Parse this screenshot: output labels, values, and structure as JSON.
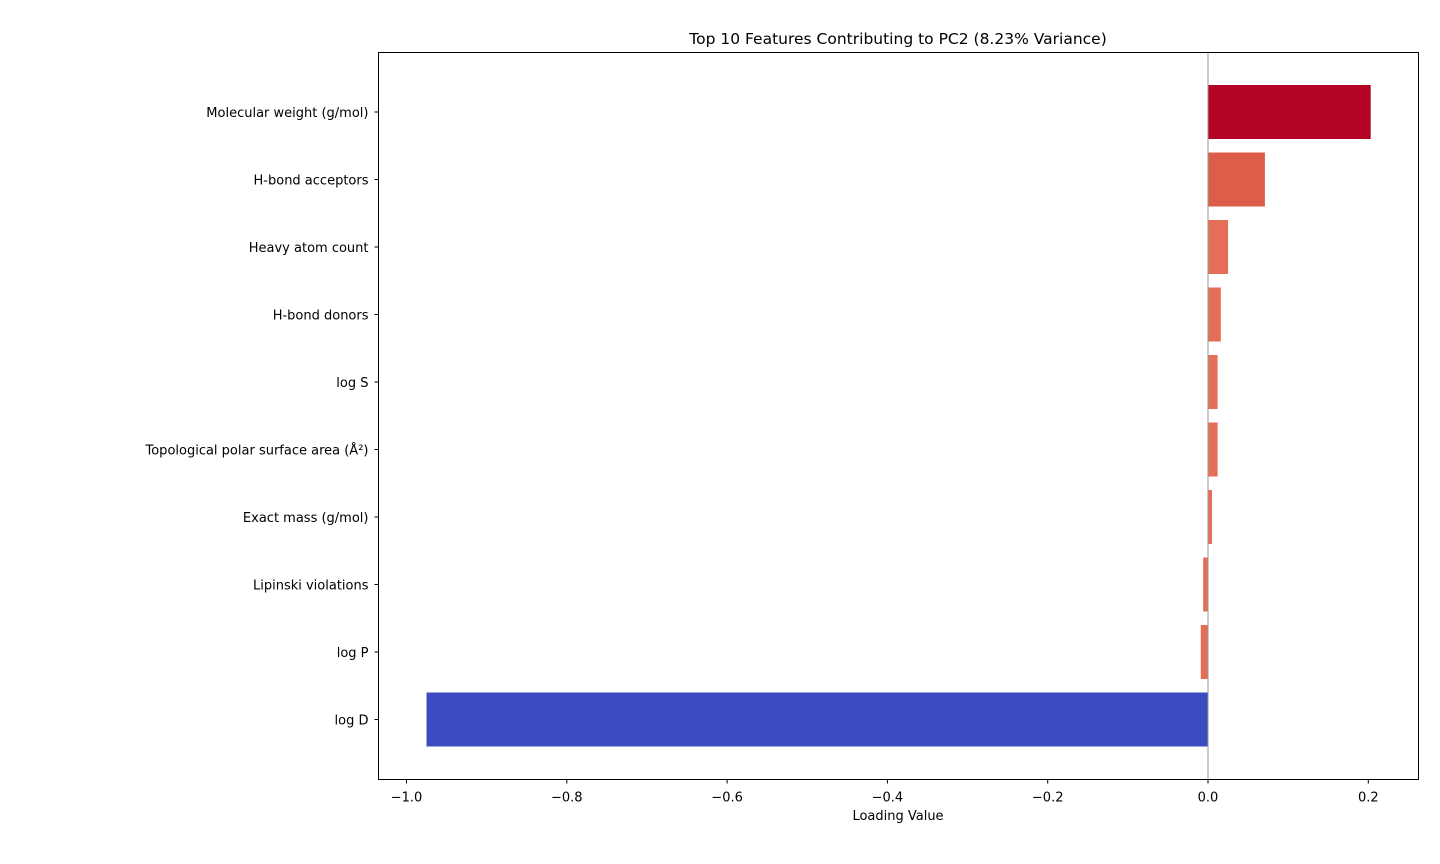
{
  "chart_data": {
    "type": "bar",
    "orientation": "horizontal",
    "title": "Top 10 Features Contributing to PC2 (8.23% Variance)",
    "xlabel": "Loading Value",
    "ylabel": "",
    "xlim": [
      -1.0,
      0.26
    ],
    "xticks": [
      -1.0,
      -0.8,
      -0.6,
      -0.4,
      -0.2,
      0.0,
      0.2
    ],
    "xtick_labels": [
      "−1.0",
      "−0.8",
      "−0.6",
      "−0.4",
      "−0.2",
      "0.0",
      "0.2"
    ],
    "grid": false,
    "legend": "none",
    "zero_line": true,
    "colormap": "coolwarm",
    "categories": [
      "Molecular weight (g/mol)",
      "H-bond acceptors",
      "Heavy atom count",
      "H-bond donors",
      "log S",
      "Topological polar surface area (Å²)",
      "Exact mass (g/mol)",
      "Lipinski violations",
      "log P",
      "log D"
    ],
    "values": [
      0.203,
      0.071,
      0.025,
      0.016,
      0.012,
      0.012,
      0.005,
      -0.006,
      -0.009,
      -0.975
    ],
    "colors": [
      "#b40426",
      "#dc5d4a",
      "#e46e56",
      "#e46e56",
      "#e46e56",
      "#e46e56",
      "#e46e56",
      "#e46e56",
      "#e46e56",
      "#3b4cc0"
    ]
  }
}
